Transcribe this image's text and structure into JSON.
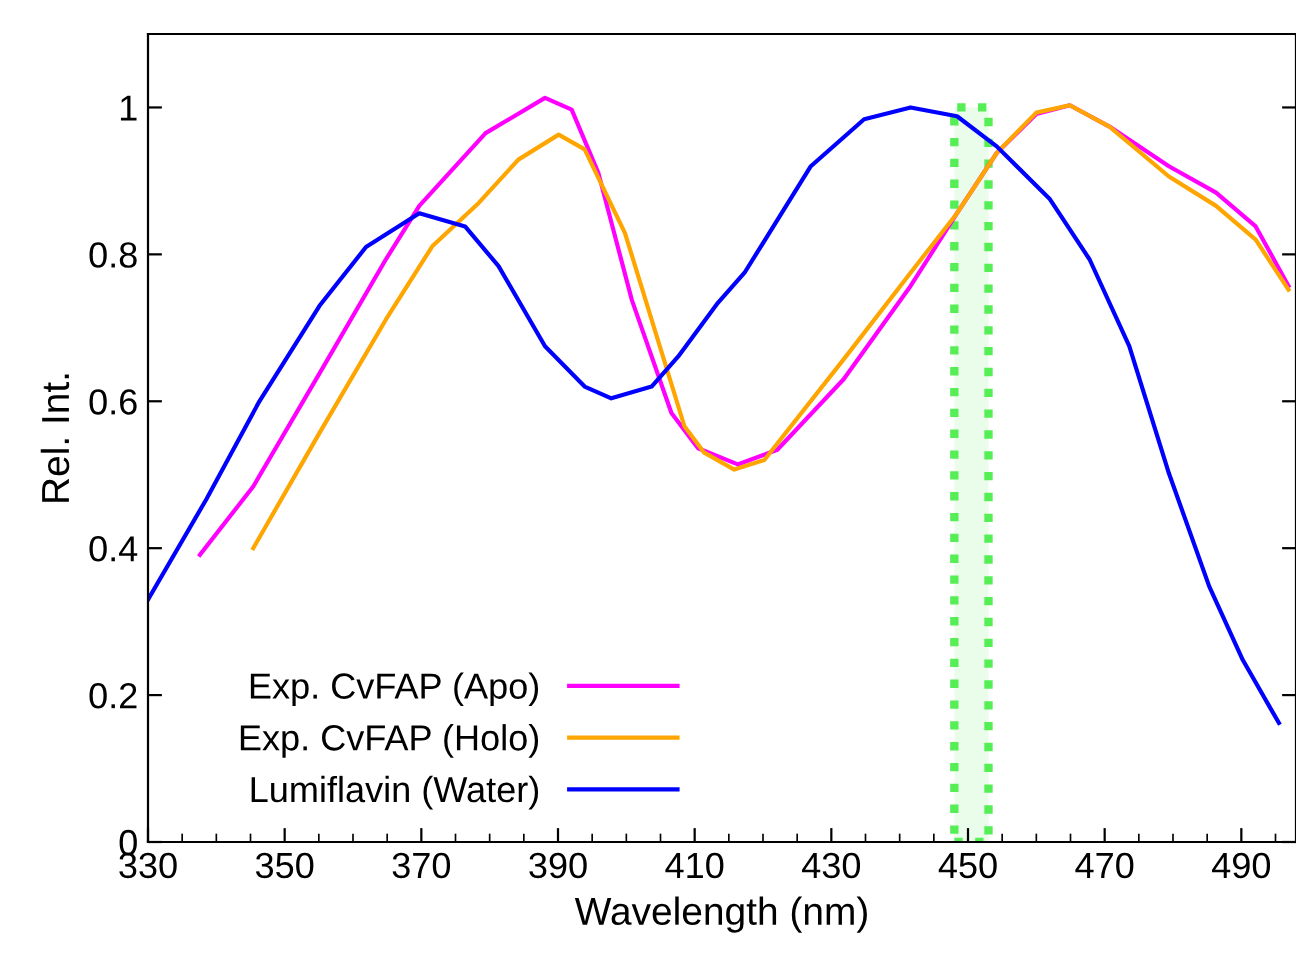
{
  "chart_data": {
    "type": "line",
    "xlabel": "Wavelength (nm)",
    "ylabel": "Rel. Int.",
    "xlim": [
      330,
      498
    ],
    "xticks": [
      330,
      350,
      370,
      390,
      410,
      430,
      450,
      470,
      490
    ],
    "ylim": [
      0,
      1.1
    ],
    "yticks": [
      0,
      0.2,
      0.4,
      0.6,
      0.8,
      1
    ],
    "grid": false,
    "legend": "bottom left",
    "marker": "none",
    "line_style": "solid",
    "bands": [
      {
        "axis": "x",
        "from": 448,
        "to": 453,
        "color": "#55ee55"
      }
    ],
    "series": [
      {
        "name": "Exp. CvFAP (Apo)",
        "color": "#ff00ff",
        "x": [
          337.6,
          345.4,
          355.1,
          364.8,
          369.7,
          379.4,
          388.1,
          392,
          395.9,
          400.8,
          406.6,
          410.5,
          416.3,
          422.1,
          431.8,
          441.6,
          448.4,
          454.2,
          460,
          464.9,
          470.7,
          479.4,
          486.3,
          492.1,
          496.9
        ],
        "values": [
          0.391,
          0.484,
          0.638,
          0.793,
          0.866,
          0.965,
          1.013,
          0.997,
          0.911,
          0.738,
          0.584,
          0.536,
          0.514,
          0.534,
          0.63,
          0.757,
          0.856,
          0.938,
          0.991,
          1.003,
          0.974,
          0.92,
          0.884,
          0.838,
          0.757
        ]
      },
      {
        "name": "Exp. CvFAP (Holo)",
        "color": "#ffa500",
        "x": [
          345.4,
          355.1,
          364.8,
          371.6,
          378.4,
          384.2,
          390.1,
          393.9,
          399.8,
          404.6,
          408.5,
          411.4,
          415.8,
          420.2,
          431.8,
          441.6,
          448.4,
          454.2,
          460,
          464.9,
          470.7,
          479.4,
          486.3,
          492.1,
          496.9
        ],
        "values": [
          0.4,
          0.557,
          0.711,
          0.811,
          0.87,
          0.929,
          0.963,
          0.943,
          0.829,
          0.684,
          0.566,
          0.53,
          0.507,
          0.52,
          0.657,
          0.775,
          0.856,
          0.938,
          0.993,
          1.003,
          0.974,
          0.906,
          0.866,
          0.82,
          0.752
        ]
      },
      {
        "name": "Lumiflavin (Water)",
        "color": "#0000ff",
        "x": [
          330,
          338.5,
          346.3,
          355.1,
          361.9,
          369.7,
          376.4,
          381.3,
          388.1,
          393.9,
          397.8,
          403.7,
          407.6,
          413.4,
          417.3,
          427,
          434.8,
          441.6,
          448.4,
          454.2,
          462,
          467.8,
          473.6,
          479.4,
          485.3,
          490.2,
          495.5
        ],
        "values": [
          0.33,
          0.466,
          0.6,
          0.73,
          0.81,
          0.856,
          0.838,
          0.784,
          0.675,
          0.62,
          0.604,
          0.62,
          0.661,
          0.734,
          0.775,
          0.92,
          0.984,
          1.0,
          0.988,
          0.947,
          0.875,
          0.793,
          0.675,
          0.502,
          0.348,
          0.248,
          0.162
        ]
      }
    ]
  }
}
